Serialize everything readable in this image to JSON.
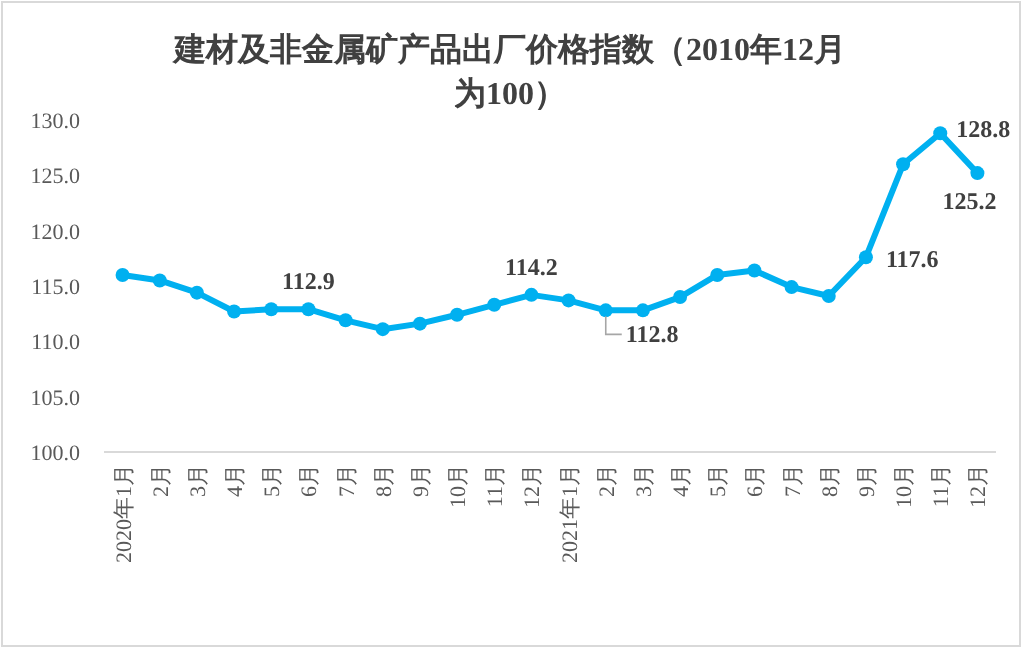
{
  "chart_data": {
    "type": "line",
    "title": "建材及非金属矿产品出厂价格指数（2010年12月为100）",
    "categories": [
      "2020年1月",
      "2月",
      "3月",
      "4月",
      "5月",
      "6月",
      "7月",
      "8月",
      "9月",
      "10月",
      "11月",
      "12月",
      "2021年1月",
      "2月",
      "3月",
      "4月",
      "5月",
      "6月",
      "7月",
      "8月",
      "9月",
      "10月",
      "11月",
      "12月"
    ],
    "series": [
      {
        "color": "#00b0f0",
        "values": [
          116.0,
          115.5,
          114.4,
          112.7,
          112.9,
          112.9,
          111.9,
          111.1,
          111.6,
          112.4,
          113.3,
          114.2,
          113.7,
          112.8,
          112.8,
          114.0,
          116.0,
          116.4,
          114.9,
          114.1,
          117.6,
          126.0,
          128.8,
          125.2
        ],
        "value_labels": [
          null,
          null,
          null,
          null,
          null,
          "112.9",
          null,
          null,
          null,
          null,
          null,
          "114.2",
          null,
          "112.8",
          null,
          null,
          null,
          null,
          null,
          null,
          "117.6",
          null,
          "128.8",
          "125.2"
        ]
      }
    ],
    "ylim": [
      100,
      130
    ],
    "yticks": [
      {
        "value": 100,
        "label": "100.0"
      },
      {
        "value": 105,
        "label": "105.0"
      },
      {
        "value": 110,
        "label": "110.0"
      },
      {
        "value": 115,
        "label": "115.0"
      },
      {
        "value": 120,
        "label": "120.0"
      },
      {
        "value": 125,
        "label": "125.0"
      },
      {
        "value": 130,
        "label": "130.0"
      }
    ],
    "grid": false,
    "marker": "circle",
    "line_style": "solid"
  }
}
